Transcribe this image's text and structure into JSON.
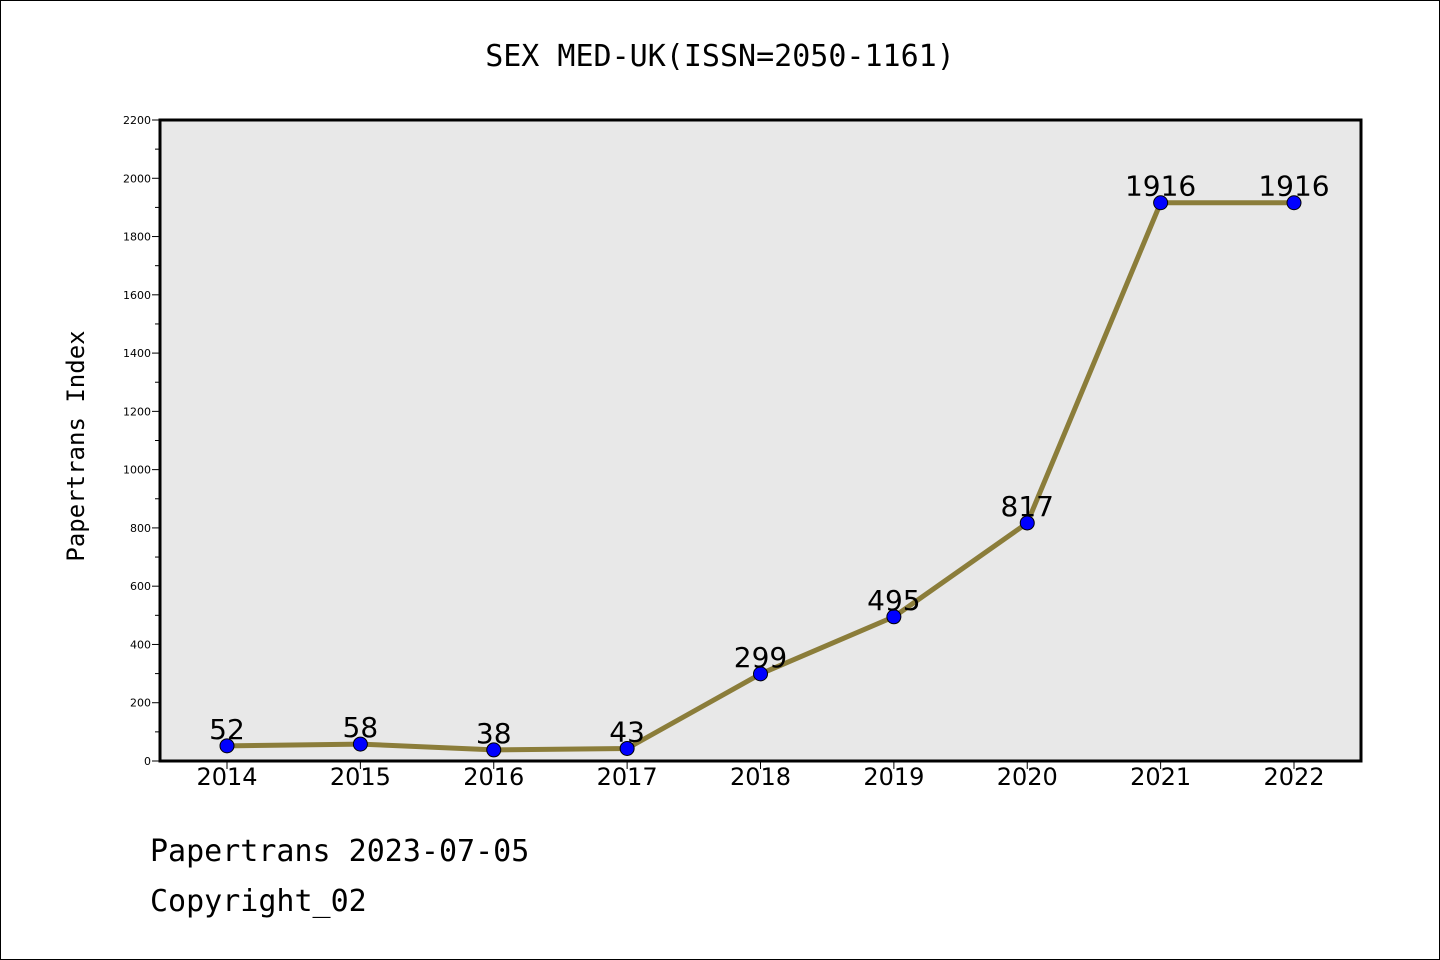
{
  "chart_data": {
    "type": "line",
    "title": "SEX MED-UK(ISSN=2050-1161)",
    "xlabel": "",
    "ylabel": "Papertrans Index",
    "categories": [
      "2014",
      "2015",
      "2016",
      "2017",
      "2018",
      "2019",
      "2020",
      "2021",
      "2022"
    ],
    "series": [
      {
        "values": [
          52,
          58,
          38,
          43,
          299,
          495,
          817,
          1916,
          1916
        ]
      }
    ],
    "data_labels": [
      "52",
      "58",
      "38",
      "43",
      "299",
      "495",
      "817",
      "1916",
      "1916"
    ],
    "ylim": [
      0,
      2200
    ],
    "yticks": [
      0,
      200,
      400,
      600,
      800,
      1000,
      1200,
      1400,
      1600,
      1800,
      2000,
      2200
    ],
    "ytick_labels": [
      "0",
      "200",
      "400",
      "600",
      "800",
      "1000",
      "1200",
      "1400",
      "1600",
      "1800",
      "2000",
      "2200"
    ],
    "grid": false,
    "colors": {
      "line": "#8b7d3a",
      "marker": "#0000ff",
      "plot_background": "#e8e8e8"
    }
  },
  "footer": {
    "line1": "Papertrans 2023-07-05",
    "line2": "Copyright_02"
  }
}
